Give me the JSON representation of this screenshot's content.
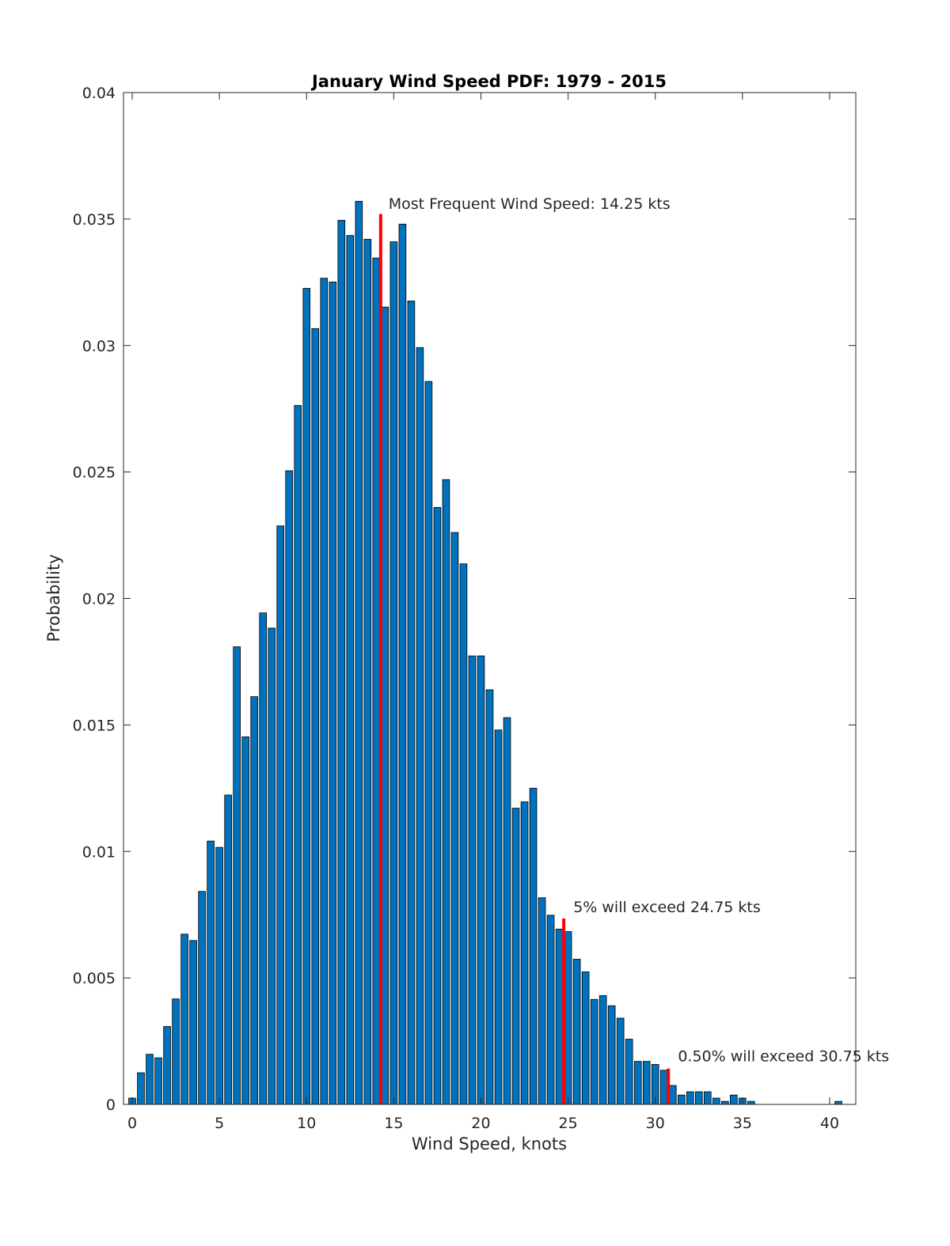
{
  "chart_data": {
    "type": "bar",
    "title": "January Wind Speed PDF: 1979 - 2015",
    "xlabel": "Wind Speed, knots",
    "ylabel": "Probability",
    "xlim": [
      -0.5,
      41.5
    ],
    "ylim": [
      0,
      0.04
    ],
    "xticks": [
      0,
      5,
      10,
      15,
      20,
      25,
      30,
      35,
      40
    ],
    "xtick_labels": [
      "0",
      "5",
      "10",
      "15",
      "20",
      "25",
      "30",
      "35",
      "40"
    ],
    "yticks": [
      0,
      0.005,
      0.01,
      0.015,
      0.02,
      0.025,
      0.03,
      0.035,
      0.04
    ],
    "ytick_labels": [
      "0",
      "0.005",
      "0.01",
      "0.015",
      "0.02",
      "0.025",
      "0.03",
      "0.035",
      "0.04"
    ],
    "bin_width": 0.5,
    "x": [
      0,
      0.5,
      1,
      1.5,
      2,
      2.5,
      3,
      3.5,
      4,
      4.5,
      5,
      5.5,
      6,
      6.5,
      7,
      7.5,
      8,
      8.5,
      9,
      9.5,
      10,
      10.5,
      11,
      11.5,
      12,
      12.5,
      13,
      13.5,
      14,
      14.5,
      15,
      15.5,
      16,
      16.5,
      17,
      17.5,
      18,
      18.5,
      19,
      19.5,
      20,
      20.5,
      21,
      21.5,
      22,
      22.5,
      23,
      23.5,
      24,
      24.5,
      25,
      25.5,
      26,
      26.5,
      27,
      27.5,
      28,
      28.5,
      29,
      29.5,
      30,
      30.5,
      31,
      31.5,
      32,
      32.5,
      33,
      33.5,
      34,
      34.5,
      35,
      35.5,
      36,
      36.5,
      37,
      37.5,
      38,
      38.5,
      39,
      39.5,
      40,
      40.5,
      41
    ],
    "values": [
      0.00025,
      0.00125,
      0.00198,
      0.00184,
      0.00308,
      0.00417,
      0.00673,
      0.00648,
      0.00842,
      0.01041,
      0.01016,
      0.01223,
      0.01809,
      0.01453,
      0.01612,
      0.01943,
      0.01883,
      0.02287,
      0.02505,
      0.02763,
      0.03226,
      0.03067,
      0.03266,
      0.03251,
      0.03495,
      0.03435,
      0.0357,
      0.0342,
      0.03346,
      0.03152,
      0.0341,
      0.0348,
      0.03176,
      0.02992,
      0.02858,
      0.0236,
      0.0247,
      0.02261,
      0.02137,
      0.01773,
      0.01773,
      0.01639,
      0.0148,
      0.01529,
      0.01171,
      0.01196,
      0.0125,
      0.00817,
      0.00748,
      0.00693,
      0.00683,
      0.00574,
      0.00524,
      0.00415,
      0.0043,
      0.0039,
      0.00341,
      0.00258,
      0.0017,
      0.0017,
      0.00158,
      0.00135,
      0.00075,
      0.00037,
      0.0005,
      0.0005,
      0.0005,
      0.00025,
      0.00012,
      0.00037,
      0.00025,
      0.00012,
      0,
      0,
      0,
      0,
      0,
      0,
      0,
      0,
      0,
      0.00012,
      0
    ],
    "bar_color": "#0072BD",
    "marker_color": "#FF0000",
    "markers": [
      {
        "x": 14.25,
        "height": 0.0352,
        "label": "Most Frequent Wind Speed: 14.25 kts",
        "label_x": 14.7,
        "label_y": 0.0354
      },
      {
        "x": 24.75,
        "height": 0.00735,
        "label": "5% will exceed 24.75 kts",
        "label_x": 25.3,
        "label_y": 0.0076
      },
      {
        "x": 30.75,
        "height": 0.00142,
        "label": "0.50% will exceed 30.75 kts",
        "label_x": 31.3,
        "label_y": 0.0017
      }
    ],
    "grid": false,
    "legend": "none"
  }
}
